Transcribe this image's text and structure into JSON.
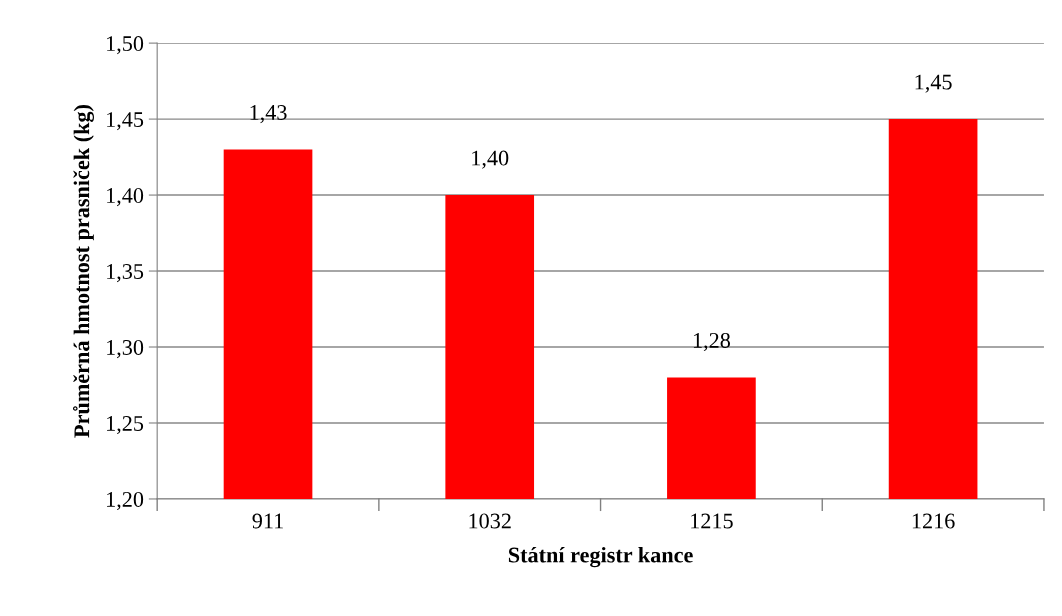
{
  "chart_data": {
    "type": "bar",
    "xlabel": "Státní registr kance",
    "ylabel": "Průměrná hmotnost prasniček (kg)",
    "categories": [
      "911",
      "1032",
      "1215",
      "1216"
    ],
    "values": [
      1.43,
      1.4,
      1.28,
      1.45
    ],
    "value_labels": [
      "1,43",
      "1,40",
      "1,28",
      "1,45"
    ],
    "color": "#ff0000",
    "ylim": [
      1.2,
      1.5
    ],
    "yticks": [
      {
        "value": 1.2,
        "label": "1,20"
      },
      {
        "value": 1.25,
        "label": "1,25"
      },
      {
        "value": 1.3,
        "label": "1,30"
      },
      {
        "value": 1.35,
        "label": "1,35"
      },
      {
        "value": 1.4,
        "label": "1,40"
      },
      {
        "value": 1.45,
        "label": "1,45"
      },
      {
        "value": 1.5,
        "label": "1,50"
      }
    ],
    "grid": "y"
  }
}
